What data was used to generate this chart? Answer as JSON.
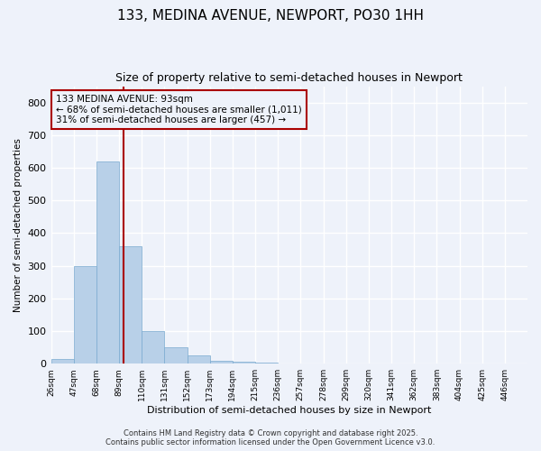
{
  "title_line1": "133, MEDINA AVENUE, NEWPORT, PO30 1HH",
  "title_line2": "Size of property relative to semi-detached houses in Newport",
  "xlabel": "Distribution of semi-detached houses by size in Newport",
  "ylabel": "Number of semi-detached properties",
  "annotation_line1": "133 MEDINA AVENUE: 93sqm",
  "annotation_line2": "← 68% of semi-detached houses are smaller (1,011)",
  "annotation_line3": "31% of semi-detached houses are larger (457) →",
  "property_size": 93,
  "bin_labels": [
    "26sqm",
    "47sqm",
    "68sqm",
    "89sqm",
    "110sqm",
    "131sqm",
    "152sqm",
    "173sqm",
    "194sqm",
    "215sqm",
    "236sqm",
    "257sqm",
    "278sqm",
    "299sqm",
    "320sqm",
    "341sqm",
    "362sqm",
    "383sqm",
    "404sqm",
    "425sqm",
    "446sqm"
  ],
  "bin_edges": [
    26,
    47,
    68,
    89,
    110,
    131,
    152,
    173,
    194,
    215,
    236,
    257,
    278,
    299,
    320,
    341,
    362,
    383,
    404,
    425,
    446,
    467
  ],
  "bar_values": [
    15,
    300,
    620,
    360,
    100,
    50,
    25,
    10,
    5,
    2,
    1,
    0,
    0,
    0,
    0,
    0,
    0,
    0,
    0,
    0,
    0
  ],
  "bar_color": "#b8d0e8",
  "bar_edge_color": "#7aaad0",
  "vline_color": "#aa0000",
  "annotation_box_color": "#aa0000",
  "background_color": "#eef2fa",
  "grid_color": "#ffffff",
  "ylim": [
    0,
    850
  ],
  "yticks": [
    0,
    100,
    200,
    300,
    400,
    500,
    600,
    700,
    800
  ],
  "footer_line1": "Contains HM Land Registry data © Crown copyright and database right 2025.",
  "footer_line2": "Contains public sector information licensed under the Open Government Licence v3.0."
}
